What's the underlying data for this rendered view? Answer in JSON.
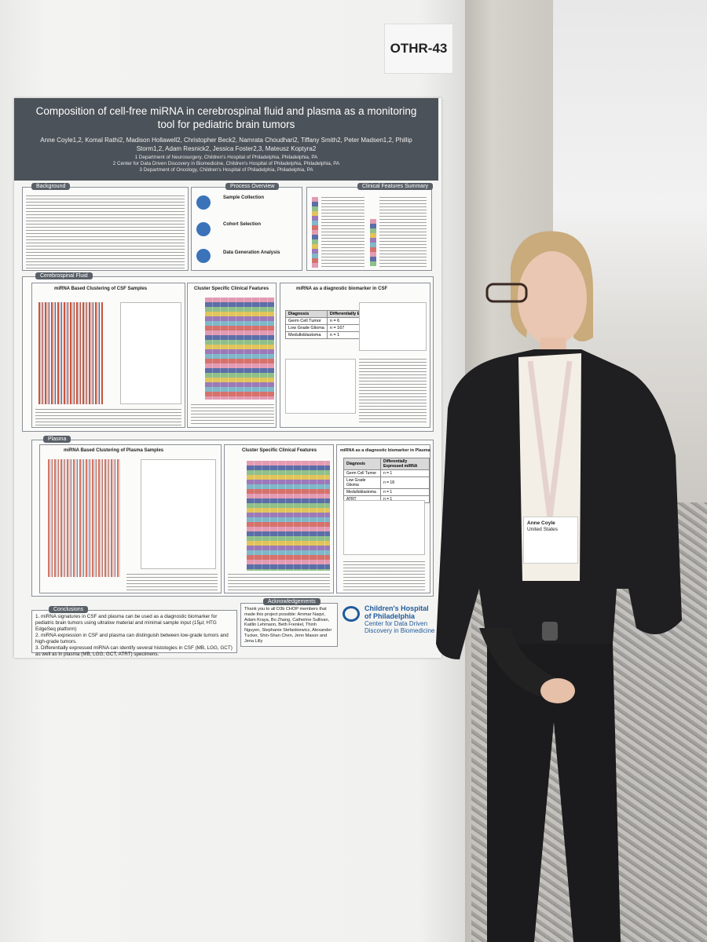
{
  "sign": "OTHR-43",
  "poster": {
    "title": "Composition of cell-free miRNA in cerebrospinal fluid and plasma as a monitoring tool for pediatric brain tumors",
    "authors": "Anne Coyle1,2, Komal Rathi2, Madison Hollawell2, Christopher Beck2, Namrata Choudhari2, Tiffany Smith2, Peter Madsen1,2, Phillip Storm1,2, Adam Resnick2, Jessica Foster2,3, Mateusz Koptyra2",
    "affiliations": [
      "1 Department of Neurosurgery, Children's Hospital of Philadelphia, Philadelphia, PA",
      "2 Center for Data Driven Discovery in Biomedicine, Children's Hospital of Philadelphia, Philadelphia, PA",
      "3 Department of Oncology, Children's Hospital of Philadelphia, Philadelphia, PA"
    ],
    "sections": [
      "Background",
      "Process Overview",
      "Clinical Features Summary",
      "Cerebrospinal Fluid",
      "Plasma",
      "Conclusions",
      "Acknowledgements"
    ],
    "process_steps": [
      "Sample Collection",
      "Cohort Selection",
      "Data Generation Analysis"
    ],
    "panels": [
      "miRNA Based Clustering of CSF Samples",
      "Cluster Specific Clinical Features",
      "miRNA as a diagnostic biomarker in CSF",
      "miRNA Based Clustering of Plasma Samples",
      "Cluster Specific Clinical Features",
      "miRNA as a diagnostic biomarker in Plasma"
    ],
    "csf_table": {
      "header": [
        "Diagnosis",
        "Differentially Expressed miRNA"
      ],
      "rows": [
        [
          "Germ Cell Tumor",
          "n = 6"
        ],
        [
          "Low Grade Glioma",
          "n = 167"
        ],
        [
          "Medulloblastoma",
          "n = 1"
        ]
      ]
    },
    "plasma_table": {
      "header": [
        "Diagnosis",
        "Differentially Expressed miRNA"
      ],
      "rows": [
        [
          "Germ Cell Tumor",
          "n = 1"
        ],
        [
          "Low Grade Glioma",
          "n = 18"
        ],
        [
          "Medulloblastoma",
          "n = 1"
        ],
        [
          "ATRT",
          "n = 1"
        ]
      ]
    },
    "conclusions": [
      "1. miRNA signatures in CSF and plasma can be used as a diagnostic biomarker for pediatric brain tumors using ultralow material and minimal sample input (15µl; HTG EdgeSeq platform)",
      "2. miRNA expression in CSF and plasma can distinguish between low-grade tumors and high-grade tumors.",
      "3. Differentially expressed miRNA can identify several histologies in CSF (MB, LGG, GCT) as well as in plasma (MB, LGG, GCT, ATRT) specimens."
    ],
    "acknowledgements": "Thank you to all D3b CHOP members that made this project possible: Ammar Naqvi, Adam Kraya, Bo Zhang, Catherine Sullivan, Kaitlin Lehmann, Beth Frenkel, Thinh Nguyen, Stephanie Stefankiewicz, Alexander Tucker, Shin-Shan Chen, Jenn Mason and Jena Lilly",
    "logo": {
      "name": "Children's Hospital of Philadelphia",
      "sub": "Center for Data Driven Discovery in Biomedicine"
    }
  },
  "badge": {
    "name": "Anne Coyle",
    "country": "United States"
  }
}
